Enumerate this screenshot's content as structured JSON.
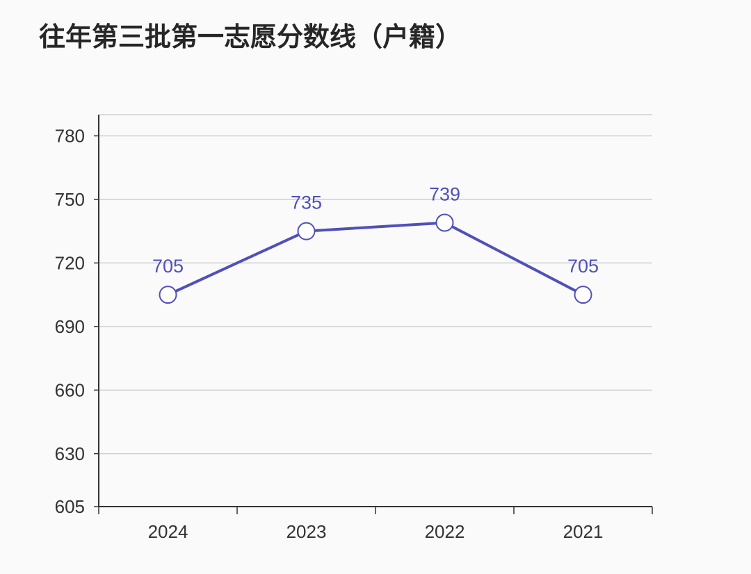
{
  "chart_data": {
    "type": "line",
    "title": "往年第三批第一志愿分数线（户籍）",
    "xlabel": "",
    "ylabel": "",
    "categories": [
      "2024",
      "2023",
      "2022",
      "2021"
    ],
    "series": [
      {
        "values": [
          705,
          735,
          739,
          705
        ]
      }
    ],
    "data_labels": [
      "705",
      "735",
      "739",
      "705"
    ],
    "yticks": [
      605,
      630,
      660,
      690,
      720,
      750,
      780
    ],
    "ytick_labels": [
      "605",
      "630",
      "660",
      "690",
      "720",
      "750",
      "780"
    ],
    "ylim": [
      605,
      790
    ],
    "grid": true,
    "legend": "none",
    "colors": {
      "line": "#5050b8",
      "marker_fill": "#ffffff",
      "label": "#5050b8",
      "grid": "#d0d0d0",
      "axis": "#333333"
    }
  }
}
